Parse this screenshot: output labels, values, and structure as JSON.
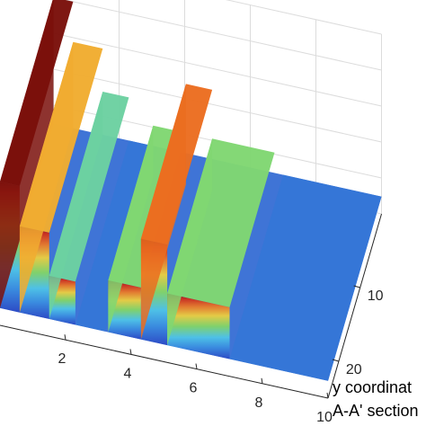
{
  "chart_data": {
    "type": "surface",
    "view": "3d",
    "colormap": "jet",
    "grid": true,
    "x_ticks": [
      "2",
      "4",
      "6",
      "8",
      "10"
    ],
    "y_ticks": [
      "10",
      "20"
    ],
    "xlabel": "",
    "ylabel_lines": [
      "y coordinat",
      "A-A' section"
    ],
    "zlabel": "",
    "xlim": [
      0,
      10
    ],
    "ylim": [
      0,
      25
    ],
    "surface_features": [
      {
        "x_range": [
          0.0,
          0.6
        ],
        "y_range": [
          0,
          25
        ],
        "level": 1.0
      },
      {
        "x_range": [
          0.6,
          1.5
        ],
        "y_range": [
          0,
          25
        ],
        "level": 0.72
      },
      {
        "x_range": [
          1.5,
          2.3
        ],
        "y_range": [
          0,
          25
        ],
        "level": 0.42
      },
      {
        "x_range": [
          2.3,
          3.2
        ],
        "y_range": [
          0,
          25
        ],
        "level": 0.12
      },
      {
        "x_range": [
          3.3,
          4.3
        ],
        "y_range": [
          0,
          21
        ],
        "level": 0.48
      },
      {
        "x_range": [
          4.3,
          5.1
        ],
        "y_range": [
          0,
          21
        ],
        "level": 0.82
      },
      {
        "x_range": [
          5.1,
          7.0
        ],
        "y_range": [
          0,
          21
        ],
        "level": 0.48
      },
      {
        "x_range": [
          7.0,
          10.0
        ],
        "y_range": [
          0,
          25
        ],
        "level": 0.12
      }
    ]
  }
}
